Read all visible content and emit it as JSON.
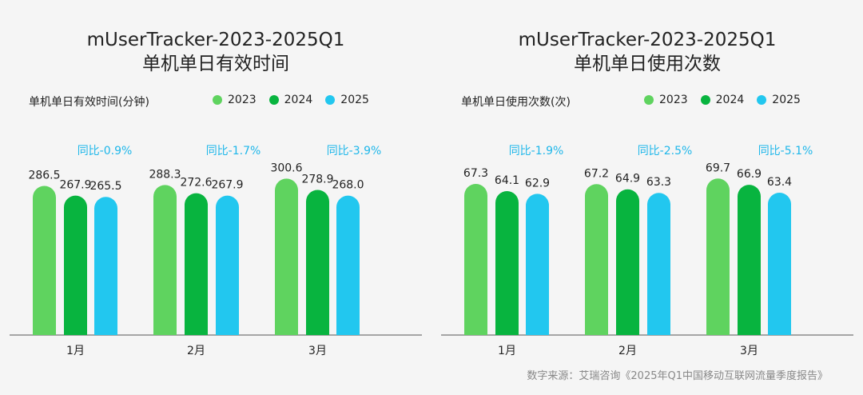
{
  "source": "数字来源：艾瑞咨询《2025年Q1中国移动互联网流量季度报告》",
  "colors": {
    "2023": "#5fd35f",
    "2024": "#08b43f",
    "2025": "#22c7ef",
    "yoy": "#1fb7ea",
    "axis": "#555555"
  },
  "chart_data": [
    {
      "type": "bar",
      "title": "mUserTracker-2023-2025Q1",
      "subtitle": "单机单日有效时间",
      "ylabel": "单机单日有效时间(分钟)",
      "categories": [
        "1月",
        "2月",
        "3月"
      ],
      "series": [
        {
          "name": "2023",
          "values": [
            286.5,
            288.3,
            300.6
          ],
          "labels": [
            "286.5",
            "288.3",
            "300.6"
          ]
        },
        {
          "name": "2024",
          "values": [
            267.9,
            272.6,
            278.9
          ],
          "labels": [
            "267.9",
            "272.6",
            "278.9"
          ]
        },
        {
          "name": "2025",
          "values": [
            265.5,
            267.9,
            268.0
          ],
          "labels": [
            "265.5",
            "267.9",
            "268.0"
          ]
        }
      ],
      "annotations": [
        "同比-0.9%",
        "同比-1.7%",
        "同比-3.9%"
      ],
      "ylim": [
        0,
        315
      ],
      "legend": "top-right",
      "grid": false
    },
    {
      "type": "bar",
      "title": "mUserTracker-2023-2025Q1",
      "subtitle": "单机单日使用次数",
      "ylabel": "单机单日使用次数(次)",
      "categories": [
        "1月",
        "2月",
        "3月"
      ],
      "series": [
        {
          "name": "2023",
          "values": [
            67.3,
            67.2,
            69.7
          ],
          "labels": [
            "67.3",
            "67.2",
            "69.7"
          ]
        },
        {
          "name": "2024",
          "values": [
            64.1,
            64.9,
            66.9
          ],
          "labels": [
            "64.1",
            "64.9",
            "66.9"
          ]
        },
        {
          "name": "2025",
          "values": [
            62.9,
            63.3,
            63.4
          ],
          "labels": [
            "62.9",
            "63.3",
            "63.4"
          ]
        }
      ],
      "annotations": [
        "同比-1.9%",
        "同比-2.5%",
        "同比-5.1%"
      ],
      "ylim": [
        0,
        73
      ],
      "legend": "top-right",
      "grid": false
    }
  ]
}
